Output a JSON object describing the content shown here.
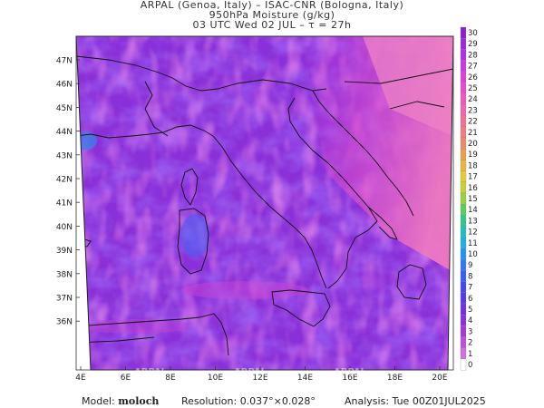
{
  "header": {
    "line1": "ARPAL (Genoa, Italy)  –  ISAC-CNR (Bologna, Italy)",
    "line2": "950hPa Moisture (g/kg)",
    "line3": "03 UTC Wed 02 JUL  –  τ = 27h"
  },
  "map": {
    "lat_labels": [
      "47N",
      "46N",
      "45N",
      "44N",
      "43N",
      "42N",
      "41N",
      "40N",
      "39N",
      "38N",
      "37N",
      "36N"
    ],
    "lon_labels": [
      "4E",
      "6E",
      "8E",
      "10E",
      "12E",
      "14E",
      "16E",
      "18E",
      "20E"
    ],
    "watermark": "ARPAL",
    "colors": {
      "background": "#8a30d8",
      "frame": "#111111"
    }
  },
  "colorbar": {
    "labels": [
      "30",
      "29",
      "28",
      "27",
      "26",
      "25",
      "24",
      "23",
      "22",
      "21",
      "20",
      "19",
      "18",
      "17",
      "16",
      "15",
      "14",
      "13",
      "12",
      "11",
      "10",
      "9",
      "8",
      "7",
      "6",
      "5",
      "4",
      "3",
      "2",
      "1",
      "0"
    ],
    "colors": [
      "#8a22c8",
      "#9c2ad8",
      "#b032e0",
      "#c83ae0",
      "#dc44d8",
      "#e84ccc",
      "#ee58c0",
      "#f064b0",
      "#f07096",
      "#ee7c80",
      "#ea8c6a",
      "#e6a050",
      "#e8b83c",
      "#e4cc34",
      "#c8d034",
      "#98d040",
      "#5ccc5c",
      "#30c890",
      "#20c0c0",
      "#20b0dc",
      "#2894e8",
      "#3478ee",
      "#3a5ef0",
      "#4646ee",
      "#5a38e8",
      "#7030e0",
      "#8a30d8",
      "#a43ad4",
      "#bc50d8",
      "#d070dc",
      "#ffffff"
    ]
  },
  "footer": {
    "model_label": "Model:",
    "model_value": "moloch",
    "resolution_label": "Resolution:",
    "resolution_value": "0.037°×0.028°",
    "analysis_label": "Analysis:",
    "analysis_value": "Tue 00Z01JUL2025"
  }
}
